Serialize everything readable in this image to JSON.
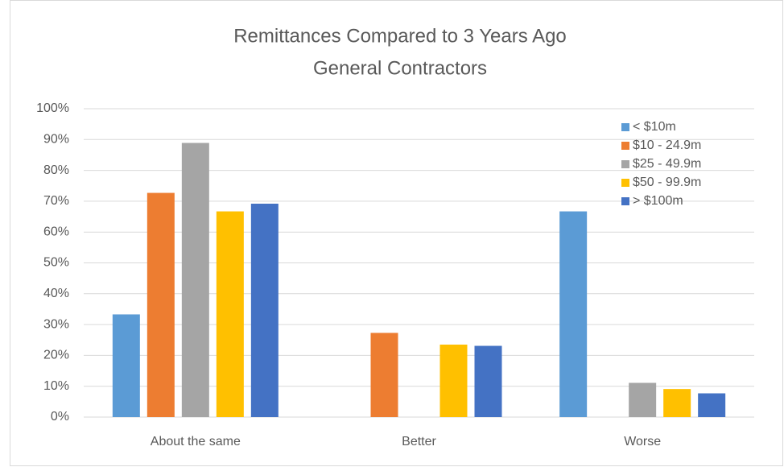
{
  "chart_data": {
    "type": "bar",
    "title": "Remittances Compared to 3 Years Ago",
    "subtitle": "General Contractors",
    "categories": [
      "About the same",
      "Better",
      "Worse"
    ],
    "series": [
      {
        "name": "< $10m",
        "color": "#5b9bd5",
        "values": [
          33.3,
          0,
          66.7
        ]
      },
      {
        "name": "$10 - 24.9m",
        "color": "#ed7d31",
        "values": [
          72.7,
          27.3,
          0
        ]
      },
      {
        "name": "$25 - 49.9m",
        "color": "#a5a5a5",
        "values": [
          88.9,
          0,
          11.1
        ]
      },
      {
        "name": "$50 - 99.9m",
        "color": "#ffc000",
        "values": [
          66.7,
          23.5,
          9.1
        ]
      },
      {
        "name": "> $100m",
        "color": "#4472c4",
        "values": [
          69.2,
          23.1,
          7.7
        ]
      }
    ],
    "ylim": [
      0,
      100
    ],
    "yticks": [
      {
        "value": 0,
        "label": "0%"
      },
      {
        "value": 10,
        "label": "10%"
      },
      {
        "value": 20,
        "label": "20%"
      },
      {
        "value": 30,
        "label": "30%"
      },
      {
        "value": 40,
        "label": "40%"
      },
      {
        "value": 50,
        "label": "50%"
      },
      {
        "value": 60,
        "label": "60%"
      },
      {
        "value": 70,
        "label": "70%"
      },
      {
        "value": 80,
        "label": "80%"
      },
      {
        "value": 90,
        "label": "90%"
      },
      {
        "value": 100,
        "label": "100%"
      }
    ],
    "grid": true,
    "legend": "top-right"
  }
}
